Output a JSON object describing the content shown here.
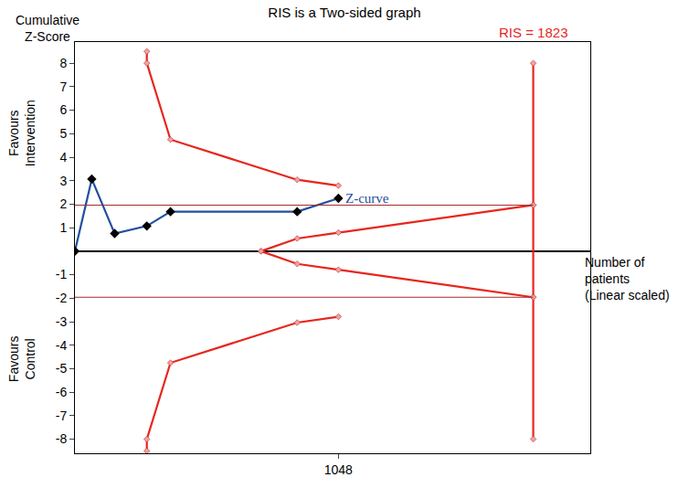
{
  "chart_data": {
    "type": "line",
    "title": "RIS is a Two-sided graph",
    "y_label": [
      "Cumulative",
      "Z-Score"
    ],
    "x_label": [
      "Number of",
      "patients",
      "(Linear scaled)"
    ],
    "side_labels": [
      {
        "text": [
          "Favours",
          "Intervention"
        ],
        "y": 5
      },
      {
        "text": [
          "Favours",
          "Control"
        ],
        "y": -4.6
      }
    ],
    "xlim": [
      0,
      2050
    ],
    "ylim": [
      -8.6,
      8.9
    ],
    "xticks": [
      1048
    ],
    "yticks": [
      -8,
      -7,
      -6,
      -5,
      -4,
      -3,
      -2,
      -1,
      1,
      2,
      3,
      4,
      5,
      6,
      7,
      8
    ],
    "grid": false,
    "hlines": [
      1.96,
      -1.96
    ],
    "ris": {
      "value": 1823,
      "label": "RIS = 1823",
      "color": "#e8251c"
    },
    "series": [
      {
        "name": "Z-curve",
        "color": "#1f4fa0",
        "marker": "diamond",
        "line_style": "solid",
        "x": [
          0,
          67,
          158,
          286,
          380,
          884,
          1048
        ],
        "values": [
          0,
          3.07,
          0.75,
          1.07,
          1.68,
          1.68,
          2.25
        ]
      },
      {
        "color": "#e8251c",
        "marker": "diamond",
        "line_style": "solid",
        "x": [
          286,
          286,
          380,
          884,
          1048
        ],
        "values": [
          8.5,
          8,
          4.75,
          3.04,
          2.79
        ]
      },
      {
        "color": "#e8251c",
        "marker": "diamond",
        "line_style": "solid",
        "x": [
          286,
          286,
          380,
          884,
          1048
        ],
        "values": [
          -8.5,
          -8,
          -4.75,
          -3.04,
          -2.79
        ]
      },
      {
        "color": "#e8251c",
        "marker": "diamond",
        "line_style": "solid",
        "x": [
          740,
          884,
          1048,
          1823
        ],
        "values": [
          0,
          0.54,
          0.79,
          1.96
        ]
      },
      {
        "color": "#e8251c",
        "marker": "diamond",
        "line_style": "solid",
        "x": [
          740,
          884,
          1048,
          1823
        ],
        "values": [
          0,
          -0.54,
          -0.79,
          -1.96
        ]
      },
      {
        "color": "#e8251c",
        "marker": "diamond",
        "line_style": "solid",
        "x": [
          1823,
          1823,
          1823,
          1823
        ],
        "values": [
          -8,
          -1.96,
          1.96,
          8
        ]
      }
    ]
  }
}
